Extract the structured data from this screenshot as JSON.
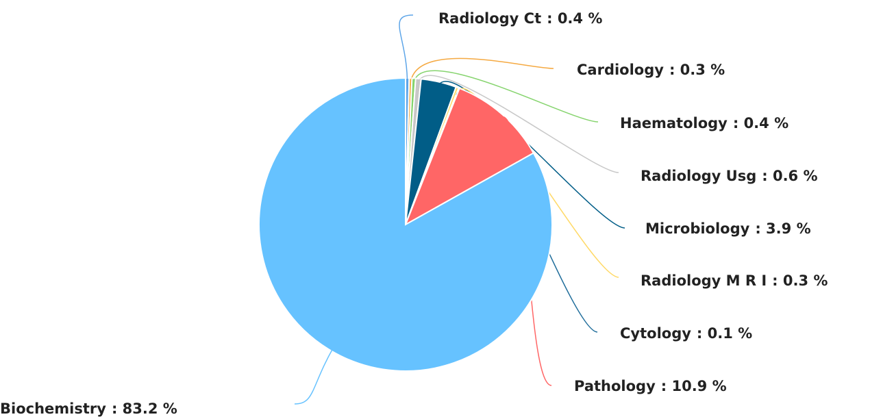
{
  "chart_data": {
    "type": "pie",
    "categories": [
      "Radiology Ct",
      "Cardiology",
      "Haematology",
      "Radiology Usg",
      "Microbiology",
      "Radiology M R I",
      "Cytology",
      "Pathology",
      "Biochemistry"
    ],
    "values": [
      0.4,
      0.3,
      0.4,
      0.6,
      3.9,
      0.3,
      0.1,
      10.9,
      83.2
    ],
    "value_labels": [
      ": 0.4 %",
      ": 0.3 %",
      ": 0.4 %",
      ": 0.6 %",
      ": 3.9 %",
      ": 0.3 %",
      ": 0.1 %",
      ": 10.9 %",
      ": 83.2 %"
    ],
    "colors": [
      "#5da5e8",
      "#f5a941",
      "#86d46e",
      "#c8c8c8",
      "#015d87",
      "#ffd966",
      "#1e6c9a",
      "#ff6666",
      "#66c2ff"
    ]
  }
}
